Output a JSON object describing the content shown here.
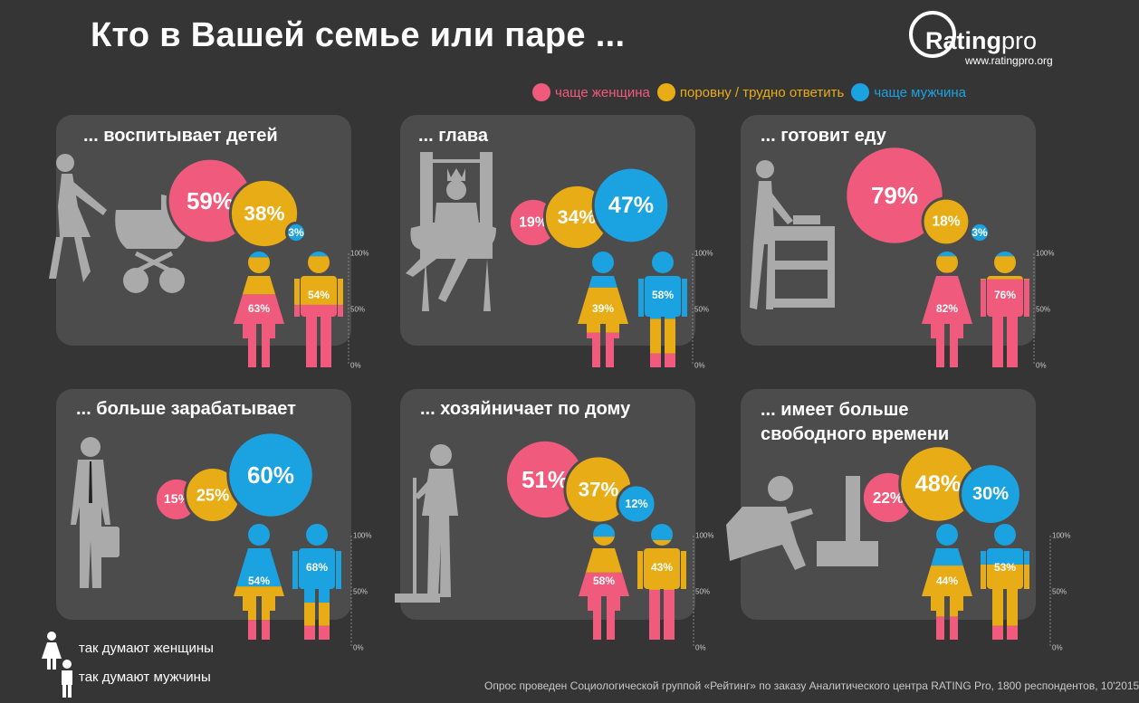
{
  "title": "Кто в Вашей семье или паре ...",
  "logo": {
    "brand": "Rating",
    "brand_suffix": "pro",
    "url": "www.ratingpro.org"
  },
  "colors": {
    "women": "#f05a7c",
    "equal": "#e8ad16",
    "men": "#1aa3e0",
    "panel": "#4d4c4d",
    "silhouette": "#aaaaaa",
    "background": "#363536"
  },
  "legend": [
    {
      "label": "чаще женщина",
      "color": "#f05a7c"
    },
    {
      "label": "поровну / трудно ответить",
      "color": "#e8ad16"
    },
    {
      "label": "чаще мужчина",
      "color": "#1aa3e0"
    }
  ],
  "key": {
    "women": "так думают женщины",
    "men": "так думают мужчины"
  },
  "scale_ticks": [
    "100%",
    "50%",
    "0%"
  ],
  "footnote": "Опрос проведен Социологической группой «Рейтинг» по заказу Аналитического центра RATING Pro, 1800 респондентов, 10'2015",
  "chart_data": [
    {
      "type": "bubble",
      "title": "... воспитывает детей",
      "categories": [
        "чаще женщина",
        "поровну / трудно ответить",
        "чаще мужчина"
      ],
      "values": [
        59,
        38,
        3
      ],
      "women_think": {
        "label": "63%",
        "value": 63,
        "dominant": "чаще женщина",
        "stack": [
          63,
          32,
          5
        ]
      },
      "men_think": {
        "label": "54%",
        "value": 54,
        "dominant": "чаще женщина",
        "stack": [
          54,
          42,
          4
        ]
      }
    },
    {
      "type": "bubble",
      "title": "... глава",
      "categories": [
        "чаще женщина",
        "поровну / трудно ответить",
        "чаще мужчина"
      ],
      "values": [
        19,
        34,
        47
      ],
      "women_think": {
        "label": "39%",
        "value": 39,
        "dominant": "поровну / трудно ответить",
        "stack": [
          30,
          39,
          31
        ]
      },
      "men_think": {
        "label": "58%",
        "value": 58,
        "dominant": "чаще мужчина",
        "stack": [
          12,
          30,
          58
        ]
      }
    },
    {
      "type": "bubble",
      "title": "... готовит еду",
      "categories": [
        "чаще женщина",
        "поровну / трудно ответить",
        "чаще мужчина"
      ],
      "values": [
        79,
        18,
        3
      ],
      "women_think": {
        "label": "82%",
        "value": 82,
        "dominant": "чаще женщина",
        "stack": [
          82,
          14,
          4
        ]
      },
      "men_think": {
        "label": "76%",
        "value": 76,
        "dominant": "чаще женщина",
        "stack": [
          76,
          20,
          4
        ]
      }
    },
    {
      "type": "bubble",
      "title": "... больше зарабатывает",
      "categories": [
        "чаще женщина",
        "поровну / трудно ответить",
        "чаще мужчина"
      ],
      "values": [
        15,
        25,
        60
      ],
      "women_think": {
        "label": "54%",
        "value": 54,
        "dominant": "чаще мужчина",
        "stack": [
          17,
          29,
          54
        ]
      },
      "men_think": {
        "label": "68%",
        "value": 68,
        "dominant": "чаще мужчина",
        "stack": [
          12,
          20,
          68
        ]
      }
    },
    {
      "type": "bubble",
      "title": "... хозяйничает по дому",
      "categories": [
        "чаще женщина",
        "поровну / трудно ответить",
        "чаще мужчина"
      ],
      "values": [
        51,
        37,
        12
      ],
      "women_think": {
        "label": "58%",
        "value": 58,
        "dominant": "чаще женщина",
        "stack": [
          58,
          31,
          11
        ]
      },
      "men_think": {
        "label": "43%",
        "value": 43,
        "dominant": "чаще женщина",
        "stack": [
          43,
          43,
          14
        ]
      }
    },
    {
      "type": "bubble",
      "title": "... имеет больше свободного времени",
      "title_lines": [
        "... имеет больше",
        "свободного времени"
      ],
      "categories": [
        "чаще женщина",
        "поровну / трудно ответить",
        "чаще мужчина"
      ],
      "values": [
        22,
        48,
        30
      ],
      "women_think": {
        "label": "44%",
        "value": 44,
        "dominant": "поровну / трудно ответить",
        "stack": [
          20,
          44,
          36
        ]
      },
      "men_think": {
        "label": "53%",
        "value": 53,
        "dominant": "поровну / трудно ответить",
        "stack": [
          12,
          53,
          35
        ]
      }
    }
  ]
}
